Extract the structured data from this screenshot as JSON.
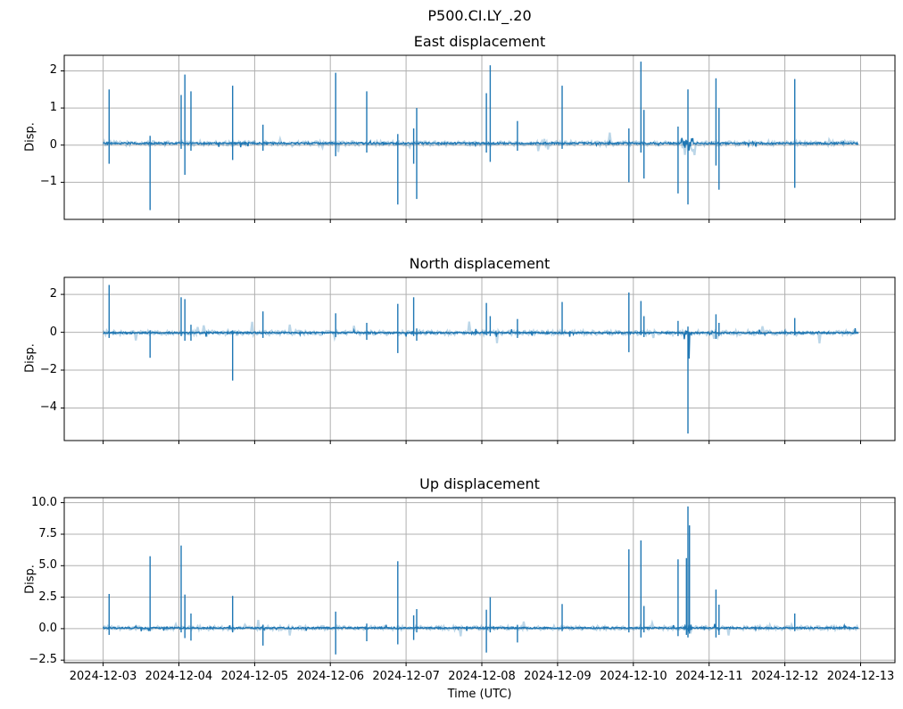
{
  "figure": {
    "suptitle": "P500.CI.LY_.20",
    "background_color": "#ffffff",
    "line_color": "#1f77b4",
    "haze_color": "rgba(31,119,180,0.30)",
    "grid_color": "#b0b0b0",
    "axis_color": "#000000",
    "text_color": "#000000"
  },
  "chart_data": {
    "type": "line",
    "title": "P500.CI.LY_.20",
    "xlabel": "Time (UTC)",
    "x_tick_labels": [
      "2024-12-03",
      "2024-12-04",
      "2024-12-05",
      "2024-12-06",
      "2024-12-07",
      "2024-12-08",
      "2024-12-09",
      "2024-12-10",
      "2024-12-11",
      "2024-12-12",
      "2024-12-13"
    ],
    "x_tick_days": [
      0,
      1,
      2,
      3,
      4,
      5,
      6,
      7,
      8,
      9,
      10
    ],
    "xlim_days": [
      -0.513,
      10.453
    ],
    "data_span_days": [
      0.0,
      9.97
    ],
    "grid": true,
    "legend": false,
    "spike_format": "[days_after_2024-12-03T00:00Z, peak_value, trough_value]",
    "panels": [
      {
        "title": "East displacement",
        "ylabel": "Disp.",
        "ylim": [
          -2.0,
          2.42
        ],
        "yticks": [
          2,
          1,
          0,
          -1
        ],
        "ytick_labels": [
          "2",
          "1",
          "0",
          "−1"
        ],
        "baseline": 0.05,
        "noise_amp": 0.045,
        "noise_regions": [
          {
            "start": 7.63,
            "end": 7.81,
            "low": -0.45,
            "high": 0.12
          }
        ],
        "spikes": [
          [
            0.08,
            1.5,
            -0.5
          ],
          [
            0.62,
            0.25,
            -1.75
          ],
          [
            1.03,
            1.35,
            -0.1
          ],
          [
            1.08,
            1.9,
            -0.8
          ],
          [
            1.16,
            1.45,
            -0.15
          ],
          [
            1.71,
            1.6,
            -0.4
          ],
          [
            2.11,
            0.55,
            -0.15
          ],
          [
            3.07,
            1.95,
            -0.3
          ],
          [
            3.48,
            1.45,
            -0.2
          ],
          [
            3.89,
            0.3,
            -1.6
          ],
          [
            4.1,
            0.45,
            -0.5
          ],
          [
            4.14,
            1.0,
            -1.45
          ],
          [
            5.06,
            1.4,
            -0.2
          ],
          [
            5.11,
            2.15,
            -0.45
          ],
          [
            5.47,
            0.65,
            -0.15
          ],
          [
            6.06,
            1.6,
            -0.1
          ],
          [
            6.94,
            0.45,
            -1.0
          ],
          [
            7.1,
            2.25,
            -0.2
          ],
          [
            7.14,
            0.95,
            -0.9
          ],
          [
            7.59,
            0.5,
            -1.3
          ],
          [
            7.72,
            1.5,
            -1.6
          ],
          [
            8.09,
            1.8,
            -0.55
          ],
          [
            8.13,
            1.0,
            -1.2
          ],
          [
            9.13,
            1.78,
            -1.15
          ]
        ]
      },
      {
        "title": "North displacement",
        "ylabel": "Disp.",
        "ylim": [
          -5.72,
          2.9
        ],
        "yticks": [
          2,
          0,
          -2,
          -4
        ],
        "ytick_labels": [
          "2",
          "0",
          "−2",
          "−4"
        ],
        "baseline": -0.03,
        "noise_amp": 0.09,
        "noise_regions": [
          {
            "start": 7.67,
            "end": 7.77,
            "low": -1.85,
            "high": 0.15
          }
        ],
        "spikes": [
          [
            0.08,
            2.5,
            -0.3
          ],
          [
            0.62,
            0.1,
            -1.35
          ],
          [
            1.03,
            1.85,
            -0.2
          ],
          [
            1.08,
            1.75,
            -0.45
          ],
          [
            1.16,
            0.4,
            -0.45
          ],
          [
            1.71,
            0.1,
            -2.55
          ],
          [
            2.11,
            1.1,
            -0.3
          ],
          [
            3.07,
            1.0,
            -0.25
          ],
          [
            3.48,
            0.5,
            -0.4
          ],
          [
            3.89,
            1.5,
            -1.1
          ],
          [
            4.1,
            1.85,
            -0.2
          ],
          [
            4.14,
            0.2,
            -0.45
          ],
          [
            5.06,
            1.55,
            -0.15
          ],
          [
            5.11,
            0.85,
            -0.2
          ],
          [
            5.47,
            0.7,
            -0.3
          ],
          [
            6.06,
            1.6,
            -0.1
          ],
          [
            6.94,
            2.1,
            -1.05
          ],
          [
            7.1,
            1.65,
            -0.15
          ],
          [
            7.14,
            0.85,
            -0.25
          ],
          [
            7.59,
            0.6,
            -0.2
          ],
          [
            7.72,
            0.3,
            -5.35
          ],
          [
            8.09,
            0.95,
            -0.35
          ],
          [
            8.13,
            0.5,
            -0.2
          ],
          [
            9.13,
            0.75,
            -0.15
          ]
        ]
      },
      {
        "title": "Up displacement",
        "ylabel": "Disp.",
        "ylim": [
          -2.7,
          10.4
        ],
        "yticks": [
          10.0,
          7.5,
          5.0,
          2.5,
          0.0,
          -2.5
        ],
        "ytick_labels": [
          "10.0",
          "7.5",
          "5.0",
          "2.5",
          "0.0",
          "−2.5"
        ],
        "baseline": 0.05,
        "noise_amp": 0.12,
        "noise_regions": [
          {
            "start": 7.67,
            "end": 7.77,
            "low": -0.4,
            "high": 0.3
          }
        ],
        "spikes": [
          [
            0.08,
            2.75,
            -0.5
          ],
          [
            0.62,
            5.75,
            -0.2
          ],
          [
            1.03,
            6.6,
            -0.3
          ],
          [
            1.08,
            2.7,
            -0.75
          ],
          [
            1.16,
            1.2,
            -0.95
          ],
          [
            1.71,
            2.6,
            -0.3
          ],
          [
            2.11,
            0.3,
            -1.35
          ],
          [
            3.07,
            1.35,
            -2.05
          ],
          [
            3.48,
            0.4,
            -1.0
          ],
          [
            3.89,
            5.35,
            -1.25
          ],
          [
            4.1,
            1.05,
            -0.9
          ],
          [
            4.14,
            1.55,
            -0.3
          ],
          [
            5.06,
            1.5,
            -1.9
          ],
          [
            5.11,
            2.5,
            -0.3
          ],
          [
            5.47,
            0.3,
            -1.1
          ],
          [
            6.06,
            1.95,
            -0.2
          ],
          [
            6.94,
            6.3,
            -0.3
          ],
          [
            7.1,
            7.0,
            -0.7
          ],
          [
            7.14,
            1.8,
            -0.3
          ],
          [
            7.59,
            5.5,
            -0.6
          ],
          [
            7.7,
            5.6,
            -0.5
          ],
          [
            7.72,
            9.7,
            -0.7
          ],
          [
            7.74,
            8.2,
            -0.4
          ],
          [
            8.09,
            3.1,
            -0.7
          ],
          [
            8.13,
            1.9,
            -0.5
          ],
          [
            9.13,
            1.2,
            -0.2
          ]
        ]
      }
    ]
  }
}
